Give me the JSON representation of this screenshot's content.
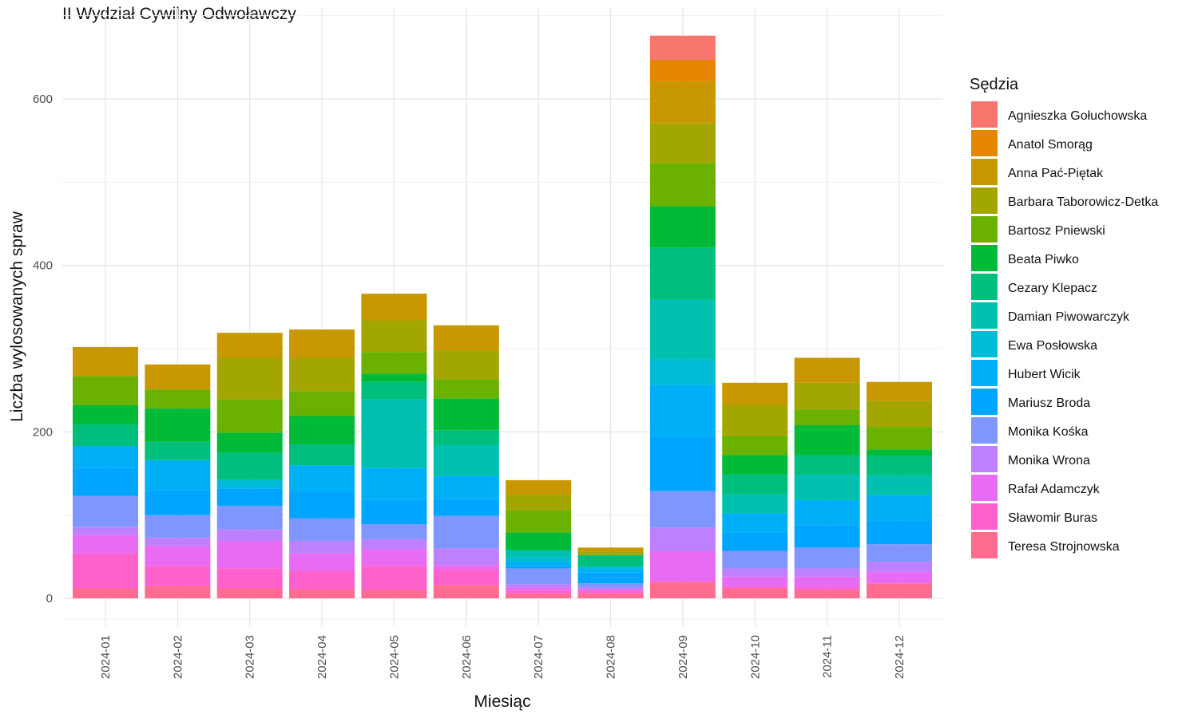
{
  "chart_data": {
    "type": "bar",
    "stacked": true,
    "title": "II Wydział Cywilny Odwoławczy",
    "xlabel": "Miesiąc",
    "ylabel": "Liczba wylosowanych spraw",
    "ylim": [
      -25,
      705
    ],
    "y_ticks": [
      0,
      200,
      400,
      600
    ],
    "grid": true,
    "legend_position": "right",
    "legend_title": "Sędzia",
    "categories": [
      "2024-01",
      "2024-02",
      "2024-03",
      "2024-04",
      "2024-05",
      "2024-06",
      "2024-07",
      "2024-08",
      "2024-09",
      "2024-10",
      "2024-11",
      "2024-12"
    ],
    "series": [
      {
        "name": "Agnieszka Gołuchowska",
        "color": "#F8766D",
        "values": [
          0,
          0,
          0,
          0,
          0,
          0,
          0,
          0,
          29,
          0,
          0,
          0
        ]
      },
      {
        "name": "Anatol Smorąg",
        "color": "#E58700",
        "values": [
          0,
          0,
          0,
          0,
          0,
          0,
          0,
          0,
          26,
          0,
          0,
          0
        ]
      },
      {
        "name": "Anna Pać-Piętak",
        "color": "#C99800",
        "values": [
          35,
          30,
          30,
          34,
          32,
          30,
          17,
          5,
          50,
          27,
          30,
          23
        ]
      },
      {
        "name": "Barbara Taborowicz-Detka",
        "color": "#A3A500",
        "values": [
          0,
          0,
          50,
          40,
          38,
          35,
          19,
          4,
          48,
          37,
          32,
          31
        ]
      },
      {
        "name": "Bartosz Pniewski",
        "color": "#6BB100",
        "values": [
          35,
          23,
          40,
          30,
          26,
          23,
          27,
          0,
          52,
          23,
          19,
          27
        ]
      },
      {
        "name": "Beata Piwko",
        "color": "#00BA38",
        "values": [
          23,
          40,
          24,
          34,
          10,
          38,
          21,
          0,
          50,
          23,
          36,
          8
        ]
      },
      {
        "name": "Cezary Klepacz",
        "color": "#00BF7D",
        "values": [
          26,
          22,
          33,
          25,
          21,
          18,
          0,
          14,
          62,
          24,
          23,
          23
        ]
      },
      {
        "name": "Damian Piwowarczyk",
        "color": "#00C0AF",
        "values": [
          0,
          0,
          0,
          0,
          82,
          37,
          9,
          0,
          72,
          23,
          31,
          24
        ]
      },
      {
        "name": "Ewa Posłowska",
        "color": "#00BCD8",
        "values": [
          0,
          0,
          10,
          0,
          0,
          0,
          5,
          3,
          31,
          0,
          0,
          0
        ]
      },
      {
        "name": "Hubert Wicik",
        "color": "#00B0F6",
        "values": [
          26,
          36,
          0,
          32,
          39,
          28,
          5,
          4,
          62,
          23,
          30,
          31
        ]
      },
      {
        "name": "Mariusz Broda",
        "color": "#00A5FF",
        "values": [
          34,
          30,
          21,
          32,
          29,
          20,
          3,
          13,
          65,
          22,
          27,
          28
        ]
      },
      {
        "name": "Monika Kośka",
        "color": "#7F96FF",
        "values": [
          37,
          27,
          28,
          27,
          18,
          39,
          19,
          5,
          44,
          21,
          25,
          21
        ]
      },
      {
        "name": "Monika Wrona",
        "color": "#BF80FF",
        "values": [
          10,
          10,
          14,
          15,
          12,
          20,
          4,
          2,
          28,
          10,
          10,
          12
        ]
      },
      {
        "name": "Rafał Adamczyk",
        "color": "#E76BF3",
        "values": [
          22,
          24,
          33,
          21,
          20,
          5,
          4,
          2,
          37,
          12,
          13,
          14
        ]
      },
      {
        "name": "Sławomir Buras",
        "color": "#FF61CC",
        "values": [
          42,
          24,
          24,
          22,
          29,
          19,
          3,
          3,
          0,
          2,
          3,
          0
        ]
      },
      {
        "name": "Teresa Strojnowska",
        "color": "#FF6C91",
        "values": [
          12,
          15,
          12,
          11,
          10,
          16,
          6,
          6,
          20,
          12,
          10,
          18
        ]
      }
    ]
  }
}
